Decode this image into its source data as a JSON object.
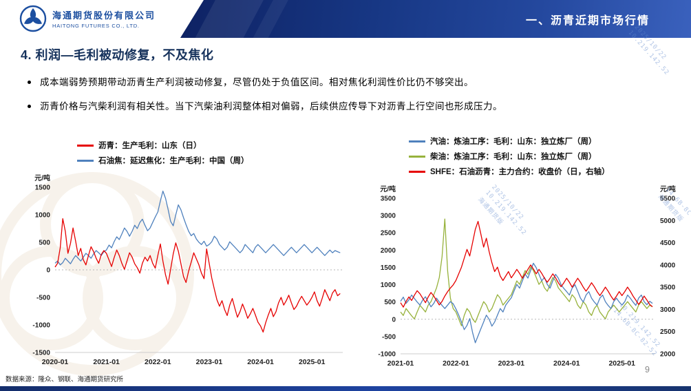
{
  "header": {
    "company_cn": "海通期货股份有限公司",
    "company_en": "HAITONG FUTURES CO., LTD.",
    "section_title": "一、沥青近期市场行情"
  },
  "slide": {
    "title": "4. 利润—毛利被动修复，不及焦化",
    "bullets": [
      "成本端弱势预期带动沥青生产利润被动修复，尽管仍处于负值区间。相对焦化利润性价比仍不够突出。",
      "沥青价格与汽柴利润有相关性。当下汽柴油利润整体相对偏弱，后续供应传导下对沥青上行空间也形成压力。"
    ],
    "source": "数据来源：隆众、钢联、海通期货研究所",
    "page_number": "9"
  },
  "watermarks": {
    "lines": [
      "2025/10/22",
      "10.219.142.52",
      "14-6B-8C-82-52",
      "海通期货版"
    ]
  },
  "colors": {
    "header_blue": "#17336e",
    "series_red": "#e60000",
    "series_blue": "#4f81bd",
    "series_green": "#97b23c"
  },
  "chart_data": [
    {
      "type": "line",
      "title": "",
      "unit_left": "元/吨",
      "x_range": [
        2020.0,
        2025.6
      ],
      "x_ticks": [
        {
          "x": 2020,
          "label": "2020-01"
        },
        {
          "x": 2021,
          "label": "2021-01"
        },
        {
          "x": 2022,
          "label": "2022-01"
        },
        {
          "x": 2023,
          "label": "2023-01"
        },
        {
          "x": 2024,
          "label": "2024-01"
        },
        {
          "x": 2025,
          "label": "2025-01"
        }
      ],
      "y_left": {
        "min": -1500,
        "max": 1500,
        "ticks": [
          1500,
          1000,
          500,
          0,
          -500,
          -1000,
          -1500
        ],
        "zero_line": true
      },
      "series": [
        {
          "name": "沥青：生产毛利：山东（日）",
          "color": "#e60000",
          "axis": "left",
          "z": 2,
          "x_start": 2020.0,
          "x_step": 0.05,
          "values": [
            50,
            120,
            400,
            930,
            700,
            300,
            480,
            760,
            520,
            260,
            390,
            180,
            90,
            260,
            420,
            330,
            210,
            120,
            280,
            350,
            300,
            180,
            60,
            220,
            360,
            260,
            120,
            10,
            160,
            310,
            230,
            110,
            40,
            -60,
            120,
            230,
            160,
            260,
            120,
            30,
            260,
            470,
            160,
            -90,
            -260,
            10,
            290,
            490,
            340,
            110,
            -120,
            -230,
            -20,
            140,
            310,
            200,
            90,
            -60,
            -160,
            380,
            120,
            -150,
            -350,
            -540,
            -660,
            -560,
            -720,
            -830,
            -640,
            -520,
            -700,
            -860,
            -760,
            -620,
            -740,
            -880,
            -800,
            -700,
            -820,
            -950,
            -1020,
            -1130,
            -960,
            -820,
            -700,
            -850,
            -760,
            -600,
            -500,
            -640,
            -560,
            -460,
            -600,
            -720,
            -660,
            -560,
            -480,
            -560,
            -640,
            -580,
            -500,
            -400,
            -560,
            -660,
            -520,
            -360,
            -460,
            -560,
            -420,
            -360,
            -470,
            -430
          ]
        },
        {
          "name": "石油焦：延迟焦化：生产毛利：中国（周）",
          "color": "#4f81bd",
          "axis": "left",
          "z": 1,
          "x_start": 2020.0,
          "x_step": 0.05,
          "values": [
            120,
            160,
            90,
            130,
            210,
            160,
            110,
            190,
            260,
            210,
            160,
            230,
            300,
            260,
            210,
            290,
            350,
            310,
            260,
            330,
            360,
            450,
            400,
            510,
            600,
            550,
            650,
            760,
            700,
            610,
            700,
            810,
            750,
            860,
            920,
            810,
            710,
            760,
            860,
            960,
            1050,
            1250,
            1430,
            1300,
            1100,
            880,
            800,
            1000,
            1180,
            1090,
            950,
            820,
            700,
            620,
            660,
            560,
            500,
            460,
            520,
            430,
            460,
            510,
            610,
            560,
            460,
            410,
            360,
            410,
            510,
            460,
            410,
            360,
            310,
            360,
            460,
            410,
            360,
            310,
            410,
            460,
            410,
            360,
            310,
            360,
            410,
            460,
            410,
            360,
            310,
            260,
            310,
            360,
            410,
            360,
            310,
            360,
            410,
            460,
            410,
            360,
            310,
            360,
            410,
            360,
            310,
            260,
            310,
            360,
            310,
            350,
            330,
            310
          ]
        }
      ]
    },
    {
      "type": "line",
      "title": "",
      "unit_left": "元/吨",
      "unit_right": "元/吨",
      "x_range": [
        2021.0,
        2025.6
      ],
      "x_ticks": [
        {
          "x": 2021,
          "label": "2021-01"
        },
        {
          "x": 2022,
          "label": "2022-01"
        },
        {
          "x": 2023,
          "label": "2023-01"
        },
        {
          "x": 2024,
          "label": "2024-01"
        },
        {
          "x": 2025,
          "label": "2025-01"
        }
      ],
      "y_left": {
        "min": -1000,
        "max": 3500,
        "ticks": [
          3500,
          3000,
          2500,
          2000,
          1500,
          1000,
          500,
          0,
          -500,
          -1000
        ],
        "zero_line": true
      },
      "y_right": {
        "min": 2000,
        "max": 5500,
        "ticks": [
          5500,
          5000,
          4500,
          4000,
          3500,
          3000,
          2500,
          2000
        ]
      },
      "series": [
        {
          "name": "汽油：炼油工序：毛利：山东：独立炼厂（周）",
          "color": "#4f81bd",
          "axis": "left",
          "z": 2,
          "x_start": 2021.0,
          "x_step": 0.05,
          "values": [
            520,
            640,
            460,
            560,
            700,
            600,
            500,
            410,
            560,
            650,
            500,
            360,
            460,
            610,
            500,
            400,
            310,
            410,
            510,
            450,
            300,
            120,
            -80,
            -300,
            -180,
            20,
            -380,
            -680,
            -480,
            -280,
            -80,
            120,
            0,
            -200,
            -80,
            120,
            310,
            210,
            410,
            520,
            620,
            820,
            1010,
            900,
            1110,
            1310,
            1190,
            1410,
            1620,
            1490,
            1300,
            1110,
            1210,
            1010,
            900,
            1110,
            1300,
            1190,
            1000,
            890,
            800,
            700,
            900,
            1000,
            810,
            610,
            500,
            700,
            800,
            610,
            500,
            410,
            610,
            700,
            510,
            400,
            310,
            510,
            610,
            500,
            410,
            510,
            700,
            610,
            500,
            400,
            610,
            700,
            510,
            420,
            520,
            460
          ]
        },
        {
          "name": "柴油：炼油工序：毛利：山东：独立炼厂（周）",
          "color": "#97b23c",
          "axis": "left",
          "z": 1,
          "x_start": 2021.0,
          "x_step": 0.05,
          "values": [
            210,
            110,
            310,
            200,
            100,
            10,
            210,
            400,
            310,
            210,
            410,
            510,
            710,
            910,
            1210,
            1810,
            2900,
            1400,
            610,
            310,
            210,
            10,
            -190,
            110,
            310,
            210,
            10,
            -90,
            110,
            310,
            510,
            410,
            210,
            310,
            510,
            710,
            610,
            410,
            510,
            610,
            710,
            910,
            1110,
            1010,
            1210,
            1410,
            1300,
            1510,
            1410,
            1210,
            1010,
            1110,
            910,
            810,
            1010,
            1210,
            1110,
            910,
            810,
            710,
            610,
            510,
            710,
            610,
            410,
            310,
            510,
            410,
            210,
            110,
            310,
            410,
            210,
            110,
            10,
            210,
            310,
            410,
            310,
            210,
            310,
            410,
            510,
            410,
            310,
            210,
            410,
            510,
            410,
            310,
            410,
            360
          ]
        },
        {
          "name": "SHFE：石油沥青：主力合约：收盘价（日，右轴）",
          "color": "#e60000",
          "axis": "right",
          "z": 3,
          "x_start": 2021.0,
          "x_step": 0.05,
          "values": [
            3150,
            3050,
            3180,
            3280,
            3200,
            3320,
            3420,
            3350,
            3250,
            3150,
            3280,
            3380,
            3300,
            3200,
            3100,
            3180,
            3300,
            3400,
            3480,
            3550,
            3650,
            3800,
            3950,
            4150,
            4350,
            4200,
            4500,
            4800,
            4980,
            4700,
            4400,
            4600,
            4300,
            4050,
            3850,
            3950,
            3750,
            3650,
            3750,
            3850,
            3710,
            3800,
            3900,
            3810,
            3700,
            3800,
            3900,
            4000,
            3910,
            3800,
            3900,
            3810,
            3700,
            3610,
            3700,
            3800,
            3710,
            3600,
            3510,
            3600,
            3700,
            3610,
            3500,
            3600,
            3700,
            3610,
            3500,
            3410,
            3500,
            3600,
            3510,
            3400,
            3310,
            3400,
            3500,
            3410,
            3300,
            3210,
            3300,
            3400,
            3310,
            3400,
            3500,
            3410,
            3300,
            3210,
            3110,
            3200,
            3300,
            3210,
            3110,
            3060
          ]
        }
      ]
    }
  ]
}
